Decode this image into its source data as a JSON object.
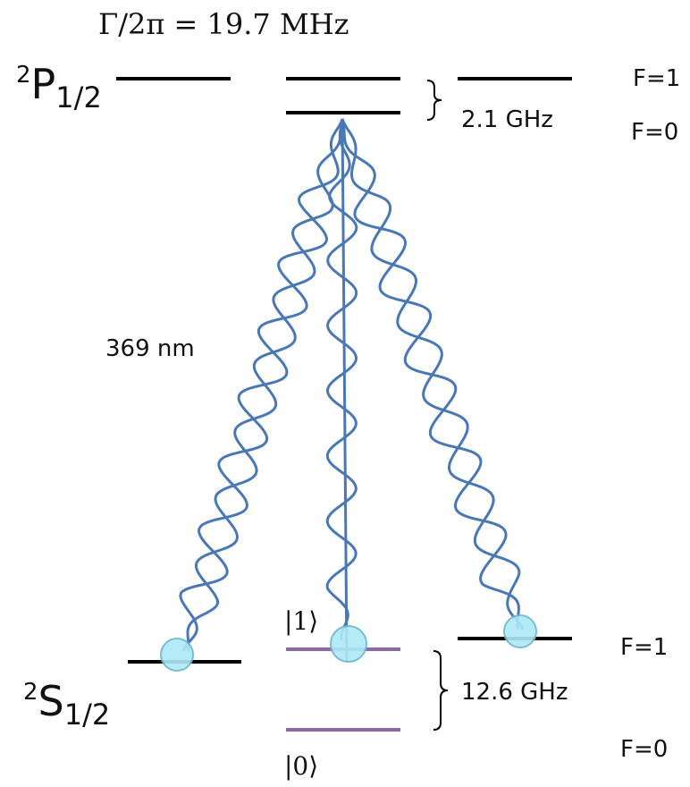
{
  "title": "Γ/2π = 19.7 MHz",
  "upper_level": {
    "sup": "2",
    "main": "P",
    "sub": "1/2",
    "f_upper": "F=1",
    "f_lower": "F=0",
    "splitting": "2.1 GHz"
  },
  "wavelength": "369 nm",
  "lower_level": {
    "sup": "2",
    "main": "S",
    "sub": "1/2",
    "f_upper": "F=1",
    "f_lower": "F=0",
    "splitting": "12.6 GHz",
    "ket_upper": "|1⟩",
    "ket_lower": "|0⟩"
  }
}
